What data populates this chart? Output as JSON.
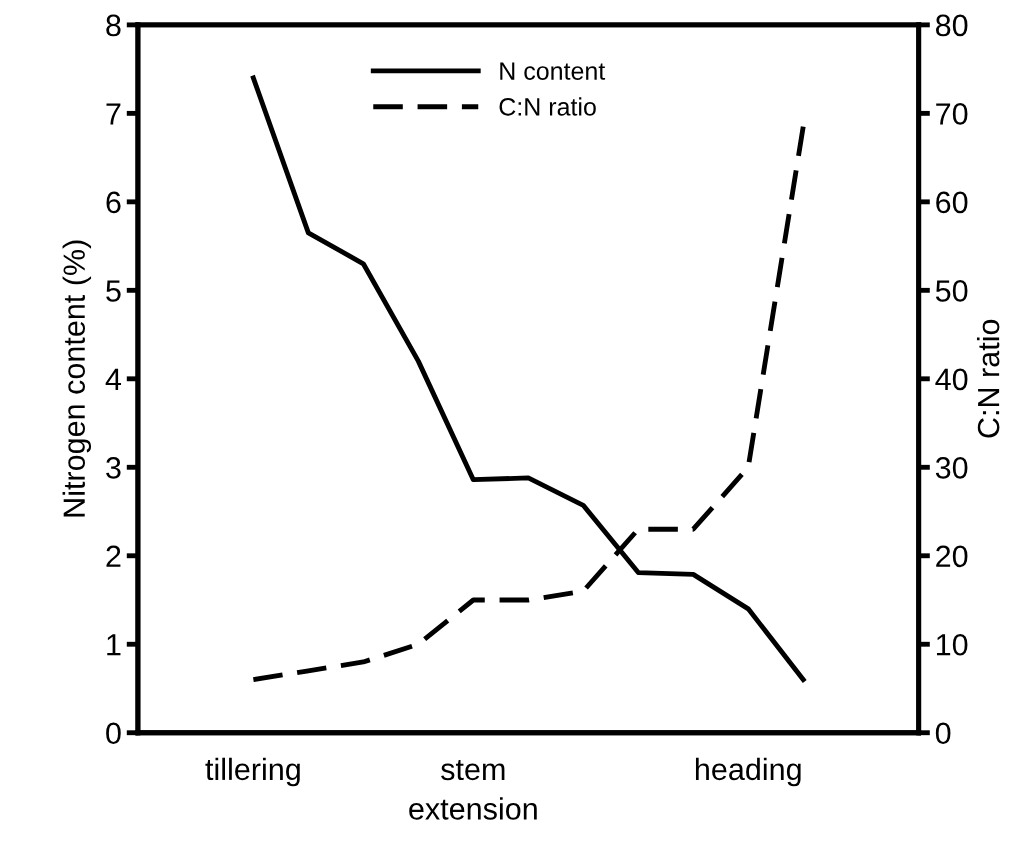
{
  "chart_data": {
    "type": "line",
    "categories": [
      "tillering",
      null,
      null,
      null,
      "stem\nextension",
      null,
      null,
      null,
      null,
      "heading",
      null
    ],
    "series": [
      {
        "name": "N content",
        "color": "#000000",
        "line_style": "solid",
        "values": [
          7.4,
          5.65,
          5.3,
          4.2,
          2.86,
          2.88,
          2.57,
          1.81,
          1.79,
          1.4,
          0.6
        ]
      },
      {
        "name": "C:N ratio",
        "color": "#000000",
        "line_style": "dashed",
        "axis": "y2",
        "values": [
          6,
          7,
          8,
          10,
          15,
          15,
          16,
          23,
          23,
          30,
          68.5
        ]
      }
    ],
    "ylabel": "Nitrogen content (%)",
    "y2label": "C:N ratio",
    "ylim": [
      0,
      8
    ],
    "yticks": [
      0,
      1,
      2,
      3,
      4,
      5,
      6,
      7,
      8
    ],
    "y2lim": [
      0,
      80
    ],
    "y2ticks": [
      0,
      10,
      20,
      30,
      40,
      50,
      60,
      70,
      80
    ],
    "legend": "top",
    "grid": false,
    "marker": "none"
  }
}
